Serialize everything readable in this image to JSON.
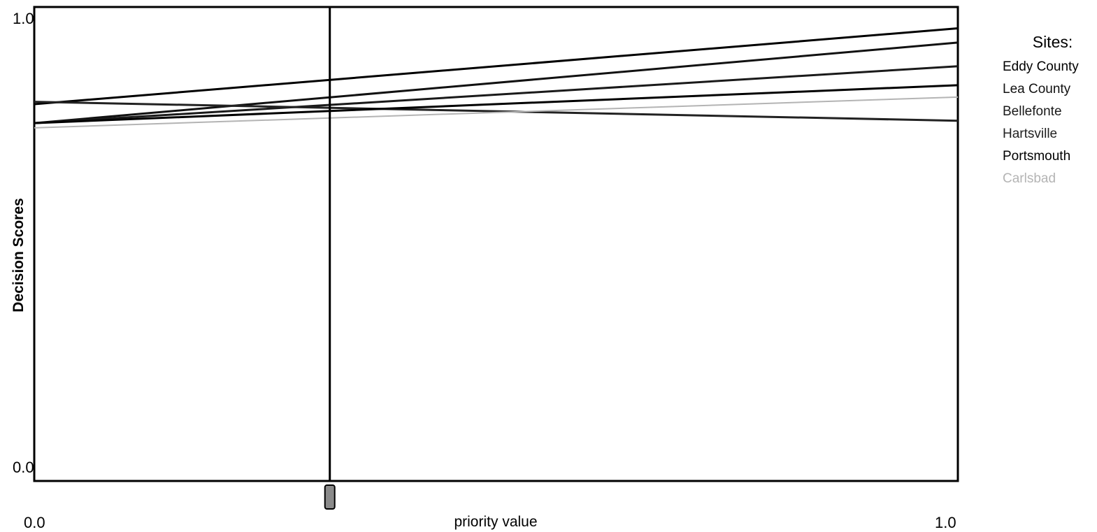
{
  "chart_data": {
    "type": "line",
    "xlabel": "priority value",
    "ylabel": "Decision Scores",
    "xlim": [
      0,
      1
    ],
    "ylim": [
      0,
      1
    ],
    "x_ticks": [
      "0.0",
      "1.0"
    ],
    "y_ticks": [
      "1.0",
      "0.0"
    ],
    "x": [
      0,
      1
    ],
    "current_priority_value": 0.32,
    "legend": {
      "title": "Sites:",
      "placement": "right"
    },
    "series": [
      {
        "name": "Eddy County",
        "values": [
          0.795,
          0.955
        ],
        "color": "#000000"
      },
      {
        "name": "Lea County",
        "values": [
          0.755,
          0.925
        ],
        "color": "#111111"
      },
      {
        "name": "Bellefonte",
        "values": [
          0.755,
          0.875
        ],
        "color": "#1a1a1a"
      },
      {
        "name": "Hartsville",
        "values": [
          0.8,
          0.76
        ],
        "color": "#222222"
      },
      {
        "name": "Portsmouth",
        "values": [
          0.755,
          0.835
        ],
        "color": "#000000"
      },
      {
        "name": "Carlsbad",
        "values": [
          0.745,
          0.81
        ],
        "color": "#b4b4b4"
      }
    ]
  }
}
